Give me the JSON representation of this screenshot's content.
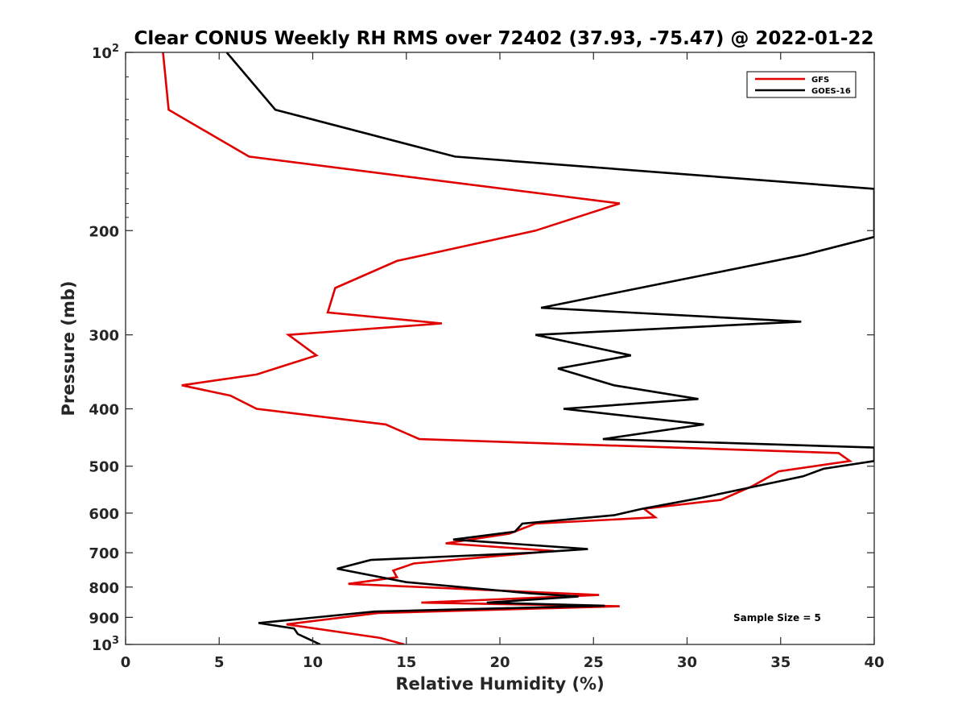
{
  "chart_data": {
    "type": "line",
    "title": "Clear CONUS Weekly RH RMS over 72402 (37.93, -75.47) @ 2022-01-22",
    "xlabel": "Relative Humidity (%)",
    "ylabel": "Pressure (mb)",
    "xlim": [
      0,
      40
    ],
    "ylim": [
      100,
      1000
    ],
    "yscale": "log",
    "y_reversed": true,
    "grid": false,
    "xticks": [
      0,
      5,
      10,
      15,
      20,
      25,
      30,
      35,
      40
    ],
    "yticks": [
      {
        "value": 100,
        "base": "10",
        "exp": "2"
      },
      {
        "value": 200,
        "label": "200"
      },
      {
        "value": 300,
        "label": "300"
      },
      {
        "value": 400,
        "label": "400"
      },
      {
        "value": 500,
        "label": "500"
      },
      {
        "value": 600,
        "label": "600"
      },
      {
        "value": 700,
        "label": "700"
      },
      {
        "value": 800,
        "label": "800"
      },
      {
        "value": 900,
        "label": "900"
      },
      {
        "value": 1000,
        "base": "10",
        "exp": "3"
      }
    ],
    "legend": {
      "position": "top-right"
    },
    "annotation": "Sample Size = 5",
    "series": [
      {
        "name": "GFS",
        "color": "#e00000",
        "points": [
          {
            "x": 2.0,
            "p": 100
          },
          {
            "x": 2.3,
            "p": 125
          },
          {
            "x": 6.6,
            "p": 150
          },
          {
            "x": 26.4,
            "p": 180
          },
          {
            "x": 21.9,
            "p": 200
          },
          {
            "x": 14.5,
            "p": 225
          },
          {
            "x": 11.2,
            "p": 250
          },
          {
            "x": 10.8,
            "p": 275
          },
          {
            "x": 16.9,
            "p": 287
          },
          {
            "x": 8.7,
            "p": 300
          },
          {
            "x": 10.2,
            "p": 325
          },
          {
            "x": 7.0,
            "p": 350
          },
          {
            "x": 3.0,
            "p": 365
          },
          {
            "x": 5.6,
            "p": 380
          },
          {
            "x": 7.0,
            "p": 400
          },
          {
            "x": 13.9,
            "p": 425
          },
          {
            "x": 15.7,
            "p": 450
          },
          {
            "x": 38.1,
            "p": 475
          },
          {
            "x": 38.7,
            "p": 490
          },
          {
            "x": 34.9,
            "p": 510
          },
          {
            "x": 33.5,
            "p": 540
          },
          {
            "x": 31.8,
            "p": 570
          },
          {
            "x": 27.7,
            "p": 590
          },
          {
            "x": 28.3,
            "p": 610
          },
          {
            "x": 21.9,
            "p": 625
          },
          {
            "x": 20.5,
            "p": 650
          },
          {
            "x": 17.1,
            "p": 675
          },
          {
            "x": 22.9,
            "p": 695
          },
          {
            "x": 15.4,
            "p": 730
          },
          {
            "x": 14.3,
            "p": 750
          },
          {
            "x": 14.5,
            "p": 770
          },
          {
            "x": 11.9,
            "p": 790
          },
          {
            "x": 25.3,
            "p": 825
          },
          {
            "x": 15.8,
            "p": 850
          },
          {
            "x": 26.4,
            "p": 862
          },
          {
            "x": 13.5,
            "p": 885
          },
          {
            "x": 8.6,
            "p": 925
          },
          {
            "x": 13.6,
            "p": 975
          },
          {
            "x": 14.9,
            "p": 1000
          }
        ]
      },
      {
        "name": "GOES-16",
        "color": "#000000",
        "points": [
          {
            "x": 5.4,
            "p": 100
          },
          {
            "x": 8.0,
            "p": 125
          },
          {
            "x": 17.6,
            "p": 150
          },
          {
            "x": 40.0,
            "p": 170
          },
          {
            "x": 40.0,
            "p": 205
          },
          {
            "x": 36.2,
            "p": 220
          },
          {
            "x": 22.2,
            "p": 270
          },
          {
            "x": 36.1,
            "p": 285
          },
          {
            "x": 21.9,
            "p": 300
          },
          {
            "x": 27.0,
            "p": 325
          },
          {
            "x": 23.1,
            "p": 342
          },
          {
            "x": 26.1,
            "p": 365
          },
          {
            "x": 30.6,
            "p": 385
          },
          {
            "x": 23.4,
            "p": 400
          },
          {
            "x": 30.9,
            "p": 425
          },
          {
            "x": 25.5,
            "p": 450
          },
          {
            "x": 40.0,
            "p": 465
          },
          {
            "x": 40.0,
            "p": 490
          },
          {
            "x": 37.3,
            "p": 505
          },
          {
            "x": 36.2,
            "p": 520
          },
          {
            "x": 30.8,
            "p": 565
          },
          {
            "x": 27.6,
            "p": 590
          },
          {
            "x": 26.1,
            "p": 605
          },
          {
            "x": 21.2,
            "p": 625
          },
          {
            "x": 20.8,
            "p": 645
          },
          {
            "x": 17.5,
            "p": 665
          },
          {
            "x": 24.7,
            "p": 690
          },
          {
            "x": 21.8,
            "p": 700
          },
          {
            "x": 13.1,
            "p": 720
          },
          {
            "x": 11.3,
            "p": 745
          },
          {
            "x": 15.0,
            "p": 785
          },
          {
            "x": 21.7,
            "p": 820
          },
          {
            "x": 24.2,
            "p": 830
          },
          {
            "x": 19.3,
            "p": 850
          },
          {
            "x": 25.6,
            "p": 860
          },
          {
            "x": 13.3,
            "p": 880
          },
          {
            "x": 7.1,
            "p": 920
          },
          {
            "x": 9.0,
            "p": 940
          },
          {
            "x": 9.2,
            "p": 960
          },
          {
            "x": 10.4,
            "p": 1000
          }
        ]
      }
    ]
  }
}
